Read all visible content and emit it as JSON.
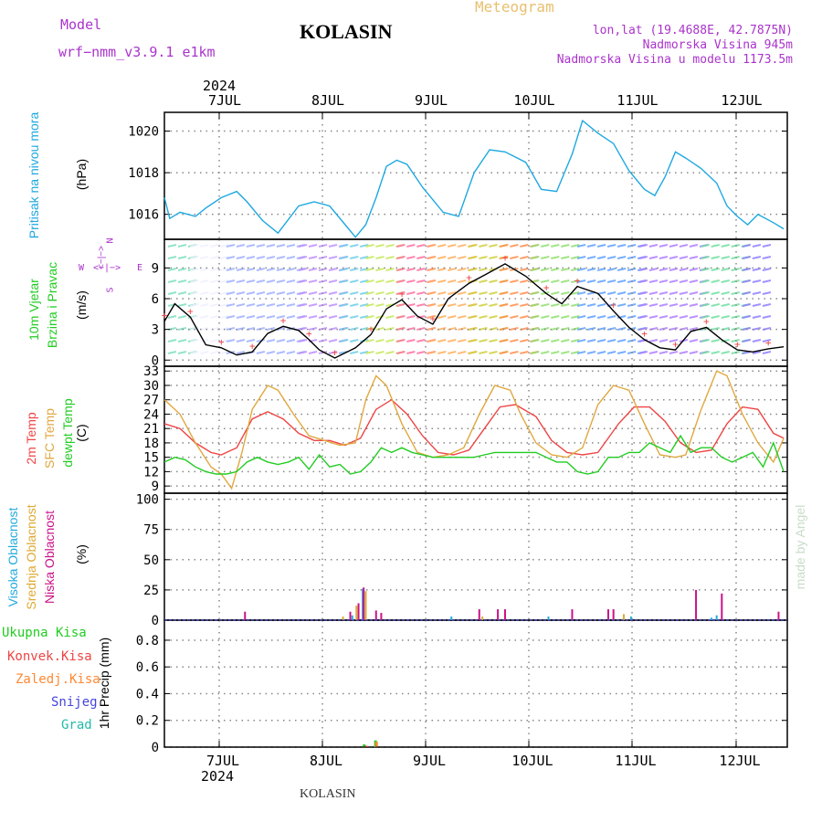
{
  "header": {
    "model_label": "Model",
    "model_name": "wrf−nmm_v3.9.1  e1km",
    "title": "KOLASIN",
    "meteogram_label": "Meteogram",
    "lonlat": "lon,lat (19.4688E, 42.7875N)",
    "altitude": "Nadmorska Visina 945m",
    "model_altitude": "Nadmorska Visina u modelu 1173.5m"
  },
  "footer": {
    "station": "KOLASIN",
    "credit": "made by Angel"
  },
  "axis": {
    "year": "2024",
    "days": [
      "7JUL",
      "8JUL",
      "9JUL",
      "10JUL",
      "11JUL",
      "12JUL"
    ]
  },
  "panel_labels": {
    "pressure": {
      "name": "Pritisak na nivou mora",
      "unit": "(hPa)"
    },
    "wind": {
      "name1": "10m Vjetar",
      "name2": "Brzina i Pravac",
      "unit": "(m/s)",
      "compass_n": "N",
      "compass_s": "S",
      "compass_e": "E",
      "compass_w": "W",
      "compass_arrow_top": "<−|−>",
      "compass_arrow_bottom": "<−|−>"
    },
    "temp": {
      "t2m": "2m Temp",
      "sfc": "SFC Temp",
      "dew": "dewpt Temp",
      "unit": "(C)"
    },
    "cloud": {
      "high": "Visoka Oblacnost",
      "mid": "Srednja Oblacnost",
      "low": "Niska Oblacnost",
      "unit": "(%)"
    },
    "precip": {
      "total": "Ukupna Kisa",
      "conv": "Konvek.Kisa",
      "frozen": "Zaledj.Kisa",
      "snow": "Snijeg",
      "grad": "Grad",
      "unit": "1hr Precip (mm)"
    }
  },
  "colors": {
    "pressure": "#1ea8e0",
    "t2m": "#ee4444",
    "sfc": "#e0a840",
    "dew": "#22cc22",
    "high_cloud": "#22aadd",
    "mid_cloud": "#ddaa33",
    "low_cloud": "#cc1188",
    "precip_total": "#22cc22",
    "precip_conv": "#ee4444",
    "precip_frozen": "#ff8833",
    "snow": "#4444dd",
    "grad": "#22bbaa",
    "purple": "#aa33cc",
    "meteogram": "#e8c070",
    "grid": "#888888"
  },
  "chart_data": [
    {
      "type": "line",
      "title": "Pritisak na nivou mora",
      "ylabel": "(hPa)",
      "ylim": [
        1014.8,
        1020.9
      ],
      "yticks": [
        1016,
        1018,
        1020
      ],
      "x_days": [
        0,
        6
      ],
      "series": [
        {
          "name": "Pritisak na nivou mora",
          "color": "#1ea8e0",
          "x": [
            0,
            0.05,
            0.15,
            0.3,
            0.4,
            0.55,
            0.7,
            0.8,
            0.95,
            1.1,
            1.3,
            1.45,
            1.6,
            1.75,
            1.85,
            1.95,
            2.05,
            2.15,
            2.25,
            2.35,
            2.5,
            2.7,
            2.85,
            3.0,
            3.15,
            3.3,
            3.5,
            3.65,
            3.8,
            3.95,
            4.05,
            4.2,
            4.35,
            4.5,
            4.65,
            4.75,
            4.85,
            4.95,
            5.05,
            5.2,
            5.35,
            5.45,
            5.55,
            5.65,
            5.75,
            5.9,
            6.0
          ],
          "y": [
            1016.8,
            1015.8,
            1016.1,
            1015.9,
            1016.3,
            1016.8,
            1017.1,
            1016.6,
            1015.7,
            1015.1,
            1016.4,
            1016.6,
            1016.4,
            1015.5,
            1014.9,
            1015.5,
            1016.8,
            1018.3,
            1018.6,
            1018.4,
            1017.3,
            1016.1,
            1015.9,
            1018.0,
            1019.1,
            1019.0,
            1018.5,
            1017.2,
            1017.1,
            1018.9,
            1020.5,
            1019.9,
            1019.4,
            1018.1,
            1017.2,
            1016.9,
            1017.8,
            1019.0,
            1018.7,
            1018.2,
            1017.5,
            1016.4,
            1015.9,
            1015.5,
            1016.0,
            1015.6,
            1015.3
          ]
        }
      ]
    },
    {
      "type": "line",
      "title": "10m Vjetar Brzina i Pravac",
      "ylabel": "(m/s)",
      "ylim": [
        -0.6,
        11.8
      ],
      "yticks": [
        0,
        3,
        6,
        9
      ],
      "x_days": [
        0,
        6
      ],
      "series": [
        {
          "name": "Brzina",
          "color": "#000000",
          "x": [
            0,
            0.1,
            0.25,
            0.4,
            0.55,
            0.7,
            0.85,
            1.0,
            1.15,
            1.3,
            1.4,
            1.5,
            1.65,
            1.85,
            2.0,
            2.15,
            2.3,
            2.45,
            2.6,
            2.75,
            2.95,
            3.1,
            3.3,
            3.5,
            3.7,
            3.85,
            4.0,
            4.2,
            4.35,
            4.5,
            4.65,
            4.8,
            4.95,
            5.1,
            5.25,
            5.4,
            5.55,
            5.7,
            5.85,
            6.0
          ],
          "y": [
            3.8,
            5.5,
            4.2,
            1.5,
            1.2,
            0.5,
            0.8,
            2.6,
            3.3,
            2.9,
            2.0,
            1.0,
            0.2,
            1.2,
            2.5,
            5.0,
            5.9,
            4.3,
            3.5,
            6.0,
            7.5,
            8.3,
            9.4,
            8.2,
            6.5,
            5.5,
            7.2,
            6.5,
            4.8,
            3.2,
            2.0,
            1.2,
            1.0,
            2.8,
            3.2,
            2.0,
            1.0,
            0.8,
            1.1,
            1.3
          ]
        }
      ]
    },
    {
      "type": "line",
      "title": "2m Temp / SFC Temp / dewpt Temp",
      "ylabel": "(C)",
      "ylim": [
        7.5,
        34
      ],
      "yticks": [
        9,
        12,
        15,
        18,
        21,
        24,
        27,
        30,
        33
      ],
      "x_days": [
        0,
        6
      ],
      "series": [
        {
          "name": "2m Temp",
          "color": "#ee4444",
          "x": [
            0,
            0.15,
            0.3,
            0.45,
            0.55,
            0.7,
            0.85,
            1.0,
            1.15,
            1.3,
            1.45,
            1.6,
            1.75,
            1.9,
            2.05,
            2.2,
            2.35,
            2.5,
            2.65,
            2.8,
            2.95,
            3.1,
            3.25,
            3.4,
            3.6,
            3.75,
            3.9,
            4.05,
            4.2,
            4.4,
            4.55,
            4.7,
            4.85,
            5.0,
            5.15,
            5.3,
            5.45,
            5.6,
            5.75,
            5.9,
            6.0
          ],
          "y": [
            22,
            21,
            18,
            16,
            15.5,
            17,
            23,
            24.5,
            23,
            20,
            18.5,
            18.5,
            17.5,
            19,
            25,
            27,
            24,
            19.5,
            16,
            15.5,
            16.5,
            21,
            25.5,
            26,
            23.5,
            18.5,
            16,
            15.5,
            16,
            22,
            25.5,
            25.5,
            22.5,
            18,
            16,
            16.5,
            22,
            25.5,
            25,
            20,
            19
          ]
        },
        {
          "name": "SFC Temp",
          "color": "#e0a840",
          "x": [
            0,
            0.15,
            0.3,
            0.45,
            0.55,
            0.65,
            0.75,
            0.85,
            1.0,
            1.1,
            1.25,
            1.4,
            1.55,
            1.7,
            1.85,
            1.95,
            2.05,
            2.15,
            2.3,
            2.45,
            2.6,
            2.75,
            2.9,
            3.05,
            3.2,
            3.35,
            3.45,
            3.6,
            3.75,
            3.9,
            4.05,
            4.2,
            4.35,
            4.5,
            4.65,
            4.8,
            4.95,
            5.05,
            5.2,
            5.35,
            5.45,
            5.6,
            5.75,
            5.9,
            6.0
          ],
          "y": [
            27,
            24,
            18,
            13,
            11.5,
            8.5,
            16,
            25,
            30,
            29,
            24,
            19.5,
            18.5,
            17.5,
            18,
            27,
            32,
            30,
            22,
            16,
            15,
            15.5,
            17,
            24,
            30,
            29,
            24,
            18,
            15.5,
            15,
            17,
            26,
            30,
            29,
            22,
            15.5,
            15,
            15.5,
            25,
            33,
            32,
            24,
            18,
            14,
            19
          ]
        },
        {
          "name": "dewpt Temp",
          "color": "#22cc22",
          "x": [
            0,
            0.1,
            0.2,
            0.3,
            0.4,
            0.5,
            0.6,
            0.7,
            0.8,
            0.9,
            1.0,
            1.1,
            1.2,
            1.3,
            1.4,
            1.5,
            1.6,
            1.7,
            1.8,
            1.9,
            2.0,
            2.1,
            2.2,
            2.3,
            2.4,
            2.5,
            2.6,
            2.7,
            2.8,
            2.9,
            3.0,
            3.1,
            3.2,
            3.3,
            3.4,
            3.5,
            3.6,
            3.7,
            3.8,
            3.9,
            4.0,
            4.1,
            4.2,
            4.3,
            4.4,
            4.5,
            4.6,
            4.7,
            4.8,
            4.9,
            5.0,
            5.1,
            5.2,
            5.3,
            5.4,
            5.5,
            5.6,
            5.7,
            5.8,
            5.9,
            6.0
          ],
          "y": [
            14,
            15,
            14.5,
            13,
            12,
            11.5,
            11.5,
            12,
            14,
            15,
            14,
            13.5,
            14,
            15,
            12.5,
            15.5,
            13,
            13.5,
            11.5,
            12,
            14,
            17,
            16,
            17,
            16,
            15.5,
            15,
            15,
            15,
            15,
            15,
            15.5,
            16,
            16,
            16,
            16,
            16,
            15,
            14,
            14,
            12,
            11.5,
            12,
            15,
            15,
            16,
            16,
            18,
            17,
            16,
            19.5,
            16,
            17,
            17,
            15,
            14,
            15,
            16,
            13,
            18,
            12
          ]
        }
      ]
    },
    {
      "type": "bar",
      "title": "Visoka / Srednja / Niska Oblacnost",
      "ylabel": "(%)",
      "ylim": [
        0,
        105
      ],
      "yticks": [
        0,
        25,
        50,
        75,
        100
      ],
      "x_days": [
        0,
        6
      ],
      "series": [
        {
          "name": "Visoka Oblacnost",
          "color": "#22aadd",
          "x": [
            1.82,
            1.92,
            2.78,
            3.72,
            4.52,
            5.3,
            5.35
          ],
          "y": [
            4,
            26,
            3,
            3,
            3,
            2,
            4
          ]
        },
        {
          "name": "Srednja Oblacnost",
          "color": "#ddaa33",
          "x": [
            1.73,
            1.86,
            1.95,
            3.08,
            4.45
          ],
          "y": [
            3,
            12,
            24,
            3,
            5
          ]
        },
        {
          "name": "Niska Oblacnost",
          "color": "#cc1188",
          "x": [
            0.78,
            1.8,
            1.88,
            1.93,
            2.05,
            2.1,
            3.05,
            3.23,
            3.3,
            3.95,
            4.3,
            4.35,
            5.15,
            5.4,
            5.95
          ],
          "y": [
            7,
            7,
            14,
            27,
            8,
            6,
            9,
            9,
            9,
            9,
            9,
            9,
            25,
            22,
            7
          ]
        }
      ]
    },
    {
      "type": "bar",
      "title": "1hr Precip",
      "ylabel": "1hr Precip (mm)",
      "ylim": [
        0,
        0.95
      ],
      "yticks": [
        0,
        0.2,
        0.4,
        0.6,
        0.8
      ],
      "x_days": [
        0,
        6
      ],
      "series": [
        {
          "name": "Ukupna Kisa",
          "color": "#22cc22",
          "x": [
            1.93,
            2.04
          ],
          "y": [
            0.02,
            0.05
          ]
        },
        {
          "name": "Konvek.Kisa",
          "color": "#ee4444",
          "x": [
            1.95
          ],
          "y": [
            0.01
          ]
        },
        {
          "name": "Zaledj.Kisa",
          "color": "#ff8833",
          "x": [
            2.05
          ],
          "y": [
            0.04
          ]
        }
      ]
    }
  ]
}
